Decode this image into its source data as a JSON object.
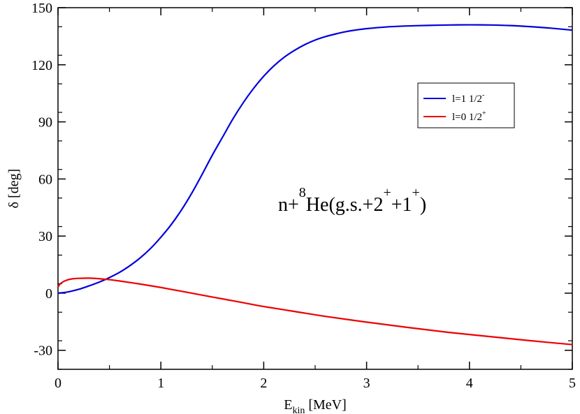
{
  "chart_data": {
    "type": "line",
    "xlim": [
      0,
      5
    ],
    "ylim": [
      -40,
      150
    ],
    "grid": false,
    "legend_position": "top-right",
    "x_ticks": [
      0,
      1,
      2,
      3,
      4,
      5
    ],
    "x_tick_labels": [
      "0",
      "1",
      "2",
      "3",
      "4",
      "5"
    ],
    "y_ticks": [
      -30,
      0,
      30,
      60,
      90,
      120,
      150
    ],
    "y_tick_labels": [
      "-30",
      "0",
      "30",
      "60",
      "90",
      "120",
      "150"
    ],
    "xlabel": {
      "main": "E",
      "sub": "kin",
      "rest": " [MeV]"
    },
    "ylabel": "δ [deg]",
    "annotation": {
      "pre": "n+",
      "sup1": "8",
      "mid": "He(g.s.+2",
      "sup2": "+",
      "mid2": "+1",
      "sup3": "+",
      "post": ")"
    },
    "series": [
      {
        "name": "l=1 1/2-",
        "legend_main": "l=1 1/2",
        "legend_sup": "-",
        "color": "#0000dd",
        "x": [
          0,
          0.1,
          0.2,
          0.3,
          0.4,
          0.5,
          0.6,
          0.7,
          0.8,
          0.9,
          1.0,
          1.1,
          1.2,
          1.3,
          1.4,
          1.5,
          1.6,
          1.7,
          1.8,
          1.9,
          2.0,
          2.1,
          2.2,
          2.3,
          2.4,
          2.5,
          2.6,
          2.7,
          2.8,
          2.9,
          3.0,
          3.2,
          3.4,
          3.6,
          3.8,
          4.0,
          4.2,
          4.4,
          4.6,
          4.8,
          5.0
        ],
        "y": [
          0,
          0.7,
          2.0,
          3.8,
          5.8,
          8.2,
          11.0,
          14.5,
          18.6,
          23.5,
          29.4,
          36.0,
          43.7,
          52.5,
          62.3,
          72.5,
          82.0,
          91.5,
          100.0,
          107.5,
          114.0,
          119.5,
          124.0,
          127.6,
          130.6,
          133.0,
          134.8,
          136.2,
          137.4,
          138.3,
          139.0,
          139.9,
          140.4,
          140.7,
          140.9,
          141.0,
          140.9,
          140.6,
          140.0,
          139.2,
          138.2
        ]
      },
      {
        "name": "l=0 1/2+",
        "legend_main": "l=0 1/2",
        "legend_sup": "+",
        "color": "#ee0000",
        "x": [
          0,
          0.02,
          0.05,
          0.1,
          0.15,
          0.2,
          0.3,
          0.4,
          0.5,
          0.6,
          0.8,
          1.0,
          1.2,
          1.4,
          1.6,
          1.8,
          2.0,
          2.3,
          2.6,
          3.0,
          3.4,
          3.8,
          4.2,
          4.6,
          5.0
        ],
        "y": [
          3.2,
          4.8,
          6.0,
          7.1,
          7.6,
          7.8,
          7.9,
          7.6,
          7.1,
          6.4,
          4.8,
          3.0,
          1.0,
          -1.0,
          -3.0,
          -5.0,
          -7.0,
          -9.6,
          -12.2,
          -15.2,
          -18.0,
          -20.6,
          -22.8,
          -25.0,
          -27.0
        ]
      }
    ]
  }
}
